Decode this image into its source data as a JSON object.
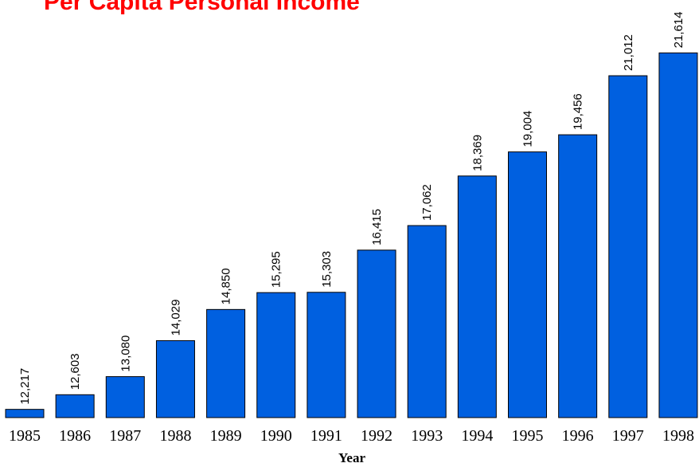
{
  "chart_data": {
    "type": "bar",
    "title": "Per Capita Personal Income",
    "x_label": "Year",
    "categories": [
      "1985",
      "1986",
      "1987",
      "1988",
      "1989",
      "1990",
      "1991",
      "1992",
      "1993",
      "1994",
      "1995",
      "1996",
      "1997",
      "1998"
    ],
    "values": [
      12217,
      12603,
      13080,
      14029,
      14850,
      15295,
      15303,
      16415,
      17062,
      18369,
      19004,
      19456,
      21012,
      21614
    ],
    "value_labels": [
      "12,217",
      "12,603",
      "13,080",
      "14,029",
      "14,850",
      "15,295",
      "15,303",
      "16,415",
      "17,062",
      "18,369",
      "19,004",
      "19,456",
      "21,012",
      "21,614"
    ],
    "color": "#0060e0",
    "ylim": [
      12000,
      22000
    ]
  }
}
